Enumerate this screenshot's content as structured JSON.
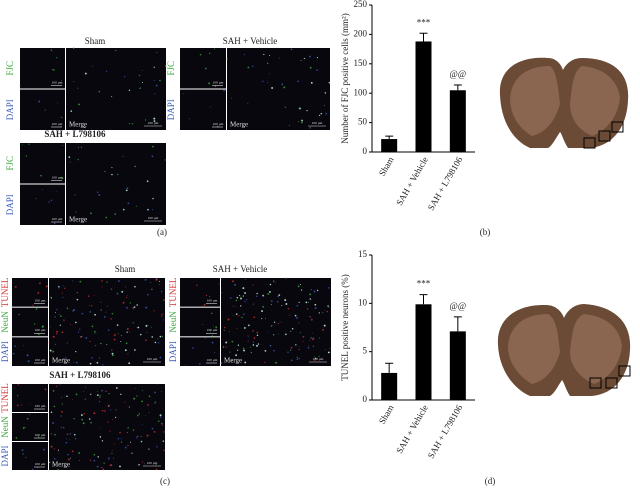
{
  "chart_data": [
    {
      "type": "bar",
      "ylabel": "Number of FJC positive cells (mm²)",
      "categories": [
        "Sham",
        "SAH + Vehicle",
        "SAH + L798106"
      ],
      "values": [
        22,
        188,
        105
      ],
      "errors": [
        5,
        14,
        9
      ],
      "color": "#000000",
      "annotations": [
        {
          "text": "***",
          "category": "SAH + Vehicle"
        },
        {
          "text": "@@",
          "category": "SAH + L798106"
        }
      ],
      "ylim": [
        0,
        250
      ],
      "yticks": [
        0,
        50,
        100,
        150,
        200,
        250
      ]
    },
    {
      "type": "bar",
      "ylabel": "TUNEL positive neurons (%)",
      "categories": [
        "Sham",
        "SAH + Vehicle",
        "SAH + L798106"
      ],
      "values": [
        2.8,
        9.9,
        7.1
      ],
      "errors": [
        1.0,
        1.0,
        1.5
      ],
      "color": "#000000",
      "annotations": [
        {
          "text": "***",
          "category": "SAH + Vehicle"
        },
        {
          "text": "@@",
          "category": "SAH + L798106"
        }
      ],
      "ylim": [
        0,
        15
      ],
      "yticks": [
        0,
        5,
        10,
        15
      ]
    }
  ],
  "panel_a": {
    "groups": [
      {
        "title": "Sham",
        "stains": [
          {
            "text": "FJC",
            "color": "#3aa63a"
          },
          {
            "text": "DAPI",
            "color": "#3a5ab8"
          }
        ],
        "merge": "Merge",
        "scale_labels": [
          "100 μm",
          "100 μm",
          "100 μm"
        ]
      },
      {
        "title": "SAH + Vehicle",
        "stains": [
          {
            "text": "FJC",
            "color": "#3aa63a"
          },
          {
            "text": "DAPI",
            "color": "#3a5ab8"
          }
        ],
        "merge": "Merge",
        "scale_labels": [
          "100 μm",
          "100 μm",
          "100 μm"
        ]
      },
      {
        "title": "SAH + L798106",
        "stains": [
          {
            "text": "FJC",
            "color": "#3aa63a"
          },
          {
            "text": "DAPI",
            "color": "#3a5ab8"
          }
        ],
        "merge": "Merge",
        "scale_labels": [
          "100 μm",
          "100 μm",
          "100 μm"
        ]
      }
    ]
  },
  "panel_c": {
    "groups": [
      {
        "title": "Sham",
        "stains": [
          {
            "text": "TUNEL",
            "color": "#d23030"
          },
          {
            "text": "NeuN",
            "color": "#3aa63a"
          },
          {
            "text": "DAPI",
            "color": "#3a5ab8"
          }
        ],
        "merge": "Merge",
        "scale_labels": [
          "100 μm",
          "100 μm",
          "100 μm",
          "100 μm"
        ]
      },
      {
        "title": "SAH + Vehicle",
        "stains": [
          {
            "text": "TUNEL",
            "color": "#d23030"
          },
          {
            "text": "NeuN",
            "color": "#3aa63a"
          },
          {
            "text": "DAPI",
            "color": "#3a5ab8"
          }
        ],
        "merge": "Merge",
        "scale_labels": [
          "100 μm",
          "100 μm",
          "100 μm",
          "100 μm"
        ]
      },
      {
        "title": "SAH + L798106",
        "stains": [
          {
            "text": "TUNEL",
            "color": "#d23030"
          },
          {
            "text": "NeuN",
            "color": "#3aa63a"
          },
          {
            "text": "DAPI",
            "color": "#3a5ab8"
          }
        ],
        "merge": "Merge",
        "scale_labels": [
          "100 μm",
          "100 μm",
          "100 μm",
          "100 μm"
        ]
      }
    ]
  },
  "panel_labels": [
    "(a)",
    "(b)",
    "(c)",
    "(d)"
  ]
}
